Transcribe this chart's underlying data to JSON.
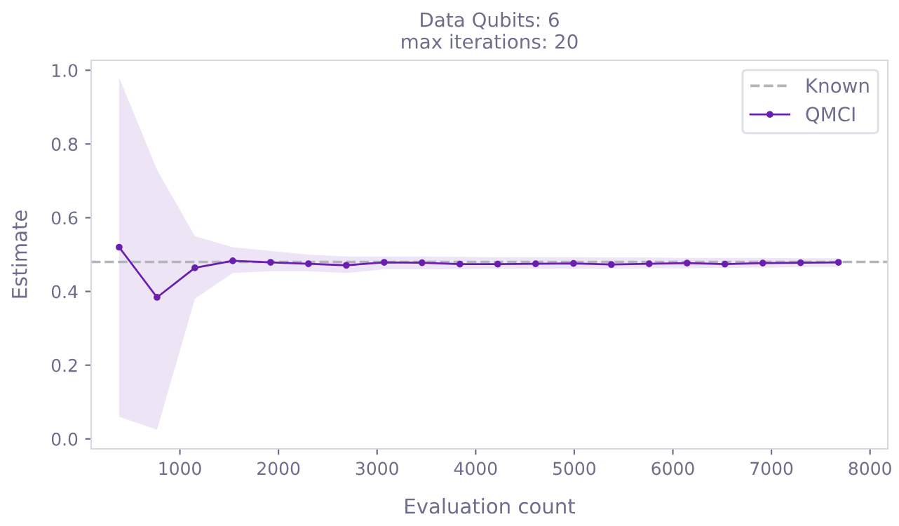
{
  "chart_data": {
    "type": "line",
    "title": "Data Qubits: 6",
    "subtitle": "max iterations: 20",
    "xlabel": "Evaluation count",
    "ylabel": "Estimate",
    "x": [
      384,
      768,
      1152,
      1536,
      1920,
      2304,
      2688,
      3072,
      3456,
      3840,
      4224,
      4608,
      4992,
      5376,
      5760,
      6144,
      6528,
      6912,
      7296,
      7680
    ],
    "series": [
      {
        "name": "QMCI",
        "color": "#6a1fb0",
        "values": [
          0.52,
          0.384,
          0.464,
          0.483,
          0.479,
          0.475,
          0.471,
          0.479,
          0.478,
          0.474,
          0.474,
          0.475,
          0.476,
          0.473,
          0.475,
          0.477,
          0.474,
          0.477,
          0.478,
          0.479
        ],
        "lower": [
          0.06,
          0.025,
          0.38,
          0.45,
          0.455,
          0.455,
          0.45,
          0.46,
          0.46,
          0.46,
          0.462,
          0.462,
          0.462,
          0.462,
          0.463,
          0.463,
          0.464,
          0.465,
          0.466,
          0.466
        ],
        "upper": [
          0.98,
          0.73,
          0.55,
          0.52,
          0.51,
          0.5,
          0.495,
          0.495,
          0.495,
          0.494,
          0.493,
          0.493,
          0.493,
          0.492,
          0.492,
          0.491,
          0.491,
          0.491,
          0.49,
          0.49
        ]
      }
    ],
    "ref_lines": [
      {
        "axis": "y",
        "value": 0.48,
        "label": "Known",
        "color": "#b4b4bd",
        "line_style": "dashed"
      }
    ],
    "marker": "circle",
    "line_style": "solid",
    "xlim": [
      100,
      8180
    ],
    "ylim": [
      -0.027,
      1.027
    ],
    "xticks": [
      1000,
      2000,
      3000,
      4000,
      5000,
      6000,
      7000,
      8000
    ],
    "yticks": [
      {
        "value": 0,
        "label": "0.0"
      },
      0.2,
      0.4,
      0.6,
      0.8,
      {
        "value": 1,
        "label": "1.0"
      }
    ],
    "grid": false,
    "legend": "top right"
  }
}
